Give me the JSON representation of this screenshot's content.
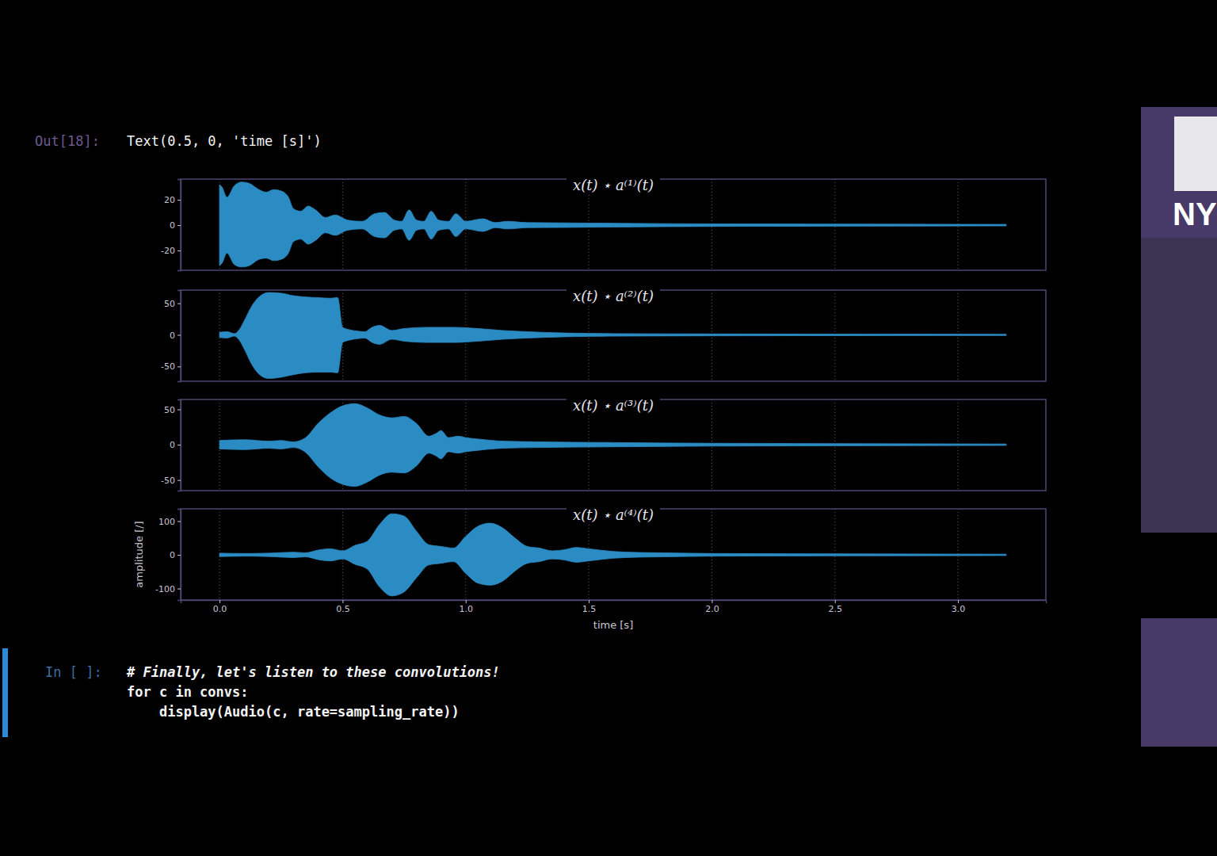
{
  "notebook": {
    "out_prompt": "Out[18]:",
    "out_text": "Text(0.5, 0, 'time [s]')",
    "in_prompt": "In [ ]:",
    "code": [
      "# Finally, let's listen to these convolutions!",
      "for c in convs:",
      "    display(Audio(c, rate=sampling_rate))"
    ]
  },
  "logo": "NY",
  "chart_data": [
    {
      "type": "area",
      "title": "x(t) ⋆ a⁽¹⁾(t)",
      "color": "#2b8cc4",
      "grid": true,
      "tick_labels": "y",
      "xlim": [
        -0.158,
        3.357
      ],
      "xticks": [
        0,
        0.5,
        1,
        1.5,
        2,
        2.5,
        3
      ],
      "ylim": [
        -35.6,
        36.3
      ],
      "yticks": [
        20,
        0,
        -20
      ],
      "x": [
        0,
        0.01,
        0.03,
        0.06,
        0.09,
        0.12,
        0.16,
        0.19,
        0.22,
        0.25,
        0.28,
        0.3,
        0.33,
        0.36,
        0.39,
        0.43,
        0.47,
        0.52,
        0.58,
        0.63,
        0.67,
        0.71,
        0.74,
        0.77,
        0.8,
        0.83,
        0.86,
        0.89,
        0.93,
        0.96,
        1.0,
        1.07,
        1.12,
        1.17,
        1.25,
        1.4,
        1.6,
        1.8,
        2.0,
        2.3,
        2.6,
        2.9,
        3.196
      ],
      "values": [
        32,
        30,
        22,
        31,
        34,
        33,
        28,
        26,
        28,
        27,
        22,
        13,
        11,
        15,
        12,
        6,
        8,
        4,
        3,
        9,
        10,
        4,
        3,
        12,
        4,
        3,
        11,
        4,
        3,
        9,
        3,
        5,
        2,
        3,
        2,
        1.8,
        1.5,
        1.2,
        1.0,
        0.9,
        0.8,
        0.7,
        0.6
      ],
      "lower": [
        -32,
        -30,
        -22,
        -31,
        -33,
        -32,
        -27,
        -26,
        -28,
        -27,
        -22,
        -13,
        -11,
        -15,
        -12,
        -6,
        -8,
        -4,
        -3,
        -9,
        -10,
        -4,
        -3,
        -12,
        -4,
        -3,
        -11,
        -4,
        -3,
        -9,
        -3,
        -5,
        -2,
        -3,
        -2,
        -1.8,
        -1.5,
        -1.2,
        -1.0,
        -0.9,
        -0.8,
        -0.7,
        -0.6
      ]
    },
    {
      "type": "area",
      "title": "x(t) ⋆ a⁽²⁾(t)",
      "color": "#2b8cc4",
      "grid": true,
      "tick_labels": "y",
      "xlim": [
        -0.158,
        3.357
      ],
      "xticks": [
        0,
        0.5,
        1,
        1.5,
        2,
        2.5,
        3
      ],
      "ylim": [
        -73.4,
        70.9
      ],
      "yticks": [
        50,
        0,
        -50
      ],
      "x": [
        0,
        0.03,
        0.06,
        0.08,
        0.1,
        0.13,
        0.16,
        0.2,
        0.25,
        0.3,
        0.35,
        0.4,
        0.45,
        0.48,
        0.5,
        0.53,
        0.56,
        0.59,
        0.62,
        0.65,
        0.7,
        0.75,
        0.85,
        0.95,
        1.05,
        1.15,
        1.25,
        1.4,
        1.6,
        2.0,
        2.5,
        3.196
      ],
      "values": [
        4,
        5,
        2,
        8,
        22,
        45,
        60,
        67,
        66,
        62,
        60,
        59,
        58,
        59,
        12,
        8,
        6,
        5,
        12,
        15,
        7,
        10,
        12,
        12,
        10,
        7,
        5,
        3,
        2,
        1.5,
        1.2,
        1
      ],
      "lower": [
        -4,
        -5,
        -2,
        -8,
        -22,
        -46,
        -62,
        -69,
        -67,
        -63,
        -60,
        -59,
        -59,
        -60,
        -12,
        -8,
        -6,
        -5,
        -12,
        -15,
        -7,
        -10,
        -12,
        -12,
        -10,
        -7,
        -5,
        -3,
        -2,
        -1.5,
        -1.2,
        -1
      ]
    },
    {
      "type": "area",
      "title": "x(t) ⋆ a⁽³⁾(t)",
      "color": "#2b8cc4",
      "grid": true,
      "tick_labels": "y",
      "xlim": [
        -0.158,
        3.357
      ],
      "xticks": [
        0,
        0.5,
        1,
        1.5,
        2,
        2.5,
        3
      ],
      "ylim": [
        -65,
        64
      ],
      "yticks": [
        50,
        0,
        -50
      ],
      "x": [
        0,
        0.1,
        0.2,
        0.25,
        0.3,
        0.35,
        0.4,
        0.45,
        0.5,
        0.55,
        0.6,
        0.65,
        0.7,
        0.75,
        0.8,
        0.85,
        0.88,
        0.9,
        0.93,
        0.97,
        1.0,
        1.05,
        1.15,
        1.3,
        1.6,
        2.0,
        2.5,
        3.196
      ],
      "values": [
        6,
        7,
        5,
        6,
        4,
        10,
        30,
        45,
        55,
        58,
        52,
        42,
        38,
        40,
        30,
        12,
        16,
        20,
        10,
        12,
        10,
        8,
        5,
        4,
        3,
        2,
        1.5,
        1
      ],
      "lower": [
        -6,
        -7,
        -5,
        -6,
        -4,
        -11,
        -31,
        -47,
        -56,
        -59,
        -53,
        -43,
        -39,
        -40,
        -30,
        -12,
        -16,
        -20,
        -10,
        -12,
        -10,
        -8,
        -5,
        -4,
        -3,
        -2,
        -1.5,
        -1
      ]
    },
    {
      "type": "area",
      "title": "x(t) ⋆ a⁽⁴⁾(t)",
      "color": "#2b8cc4",
      "grid": true,
      "xlabel": "time [s]",
      "ylabel": "amplitude [/]",
      "xlim": [
        -0.158,
        3.357
      ],
      "xticks": [
        {
          "value": 0,
          "label": "0.0"
        },
        {
          "value": 0.5,
          "label": "0.5"
        },
        {
          "value": 1,
          "label": "1.0"
        },
        {
          "value": 1.5,
          "label": "1.5"
        },
        {
          "value": 2,
          "label": "2.0"
        },
        {
          "value": 2.5,
          "label": "2.5"
        },
        {
          "value": 3,
          "label": "3.0"
        }
      ],
      "ylim": [
        -134,
        136.5
      ],
      "yticks": [
        100,
        0,
        -100
      ],
      "x": [
        0,
        0.1,
        0.2,
        0.3,
        0.35,
        0.4,
        0.45,
        0.5,
        0.55,
        0.6,
        0.65,
        0.7,
        0.75,
        0.8,
        0.85,
        0.9,
        0.95,
        1.0,
        1.05,
        1.1,
        1.15,
        1.2,
        1.25,
        1.3,
        1.35,
        1.4,
        1.45,
        1.5,
        1.6,
        1.7,
        1.8,
        2.0,
        2.5,
        3.196
      ],
      "values": [
        5,
        4,
        5,
        8,
        6,
        14,
        18,
        12,
        28,
        40,
        90,
        122,
        115,
        70,
        30,
        25,
        20,
        55,
        85,
        94,
        80,
        50,
        25,
        20,
        12,
        15,
        22,
        18,
        10,
        7,
        6,
        4,
        3,
        2
      ],
      "lower": [
        -5,
        -4,
        -5,
        -8,
        -6,
        -14,
        -18,
        -12,
        -28,
        -42,
        -95,
        -122,
        -110,
        -68,
        -30,
        -25,
        -20,
        -55,
        -84,
        -90,
        -78,
        -48,
        -25,
        -20,
        -12,
        -15,
        -22,
        -18,
        -10,
        -7,
        -6,
        -4,
        -3,
        -2
      ]
    }
  ]
}
